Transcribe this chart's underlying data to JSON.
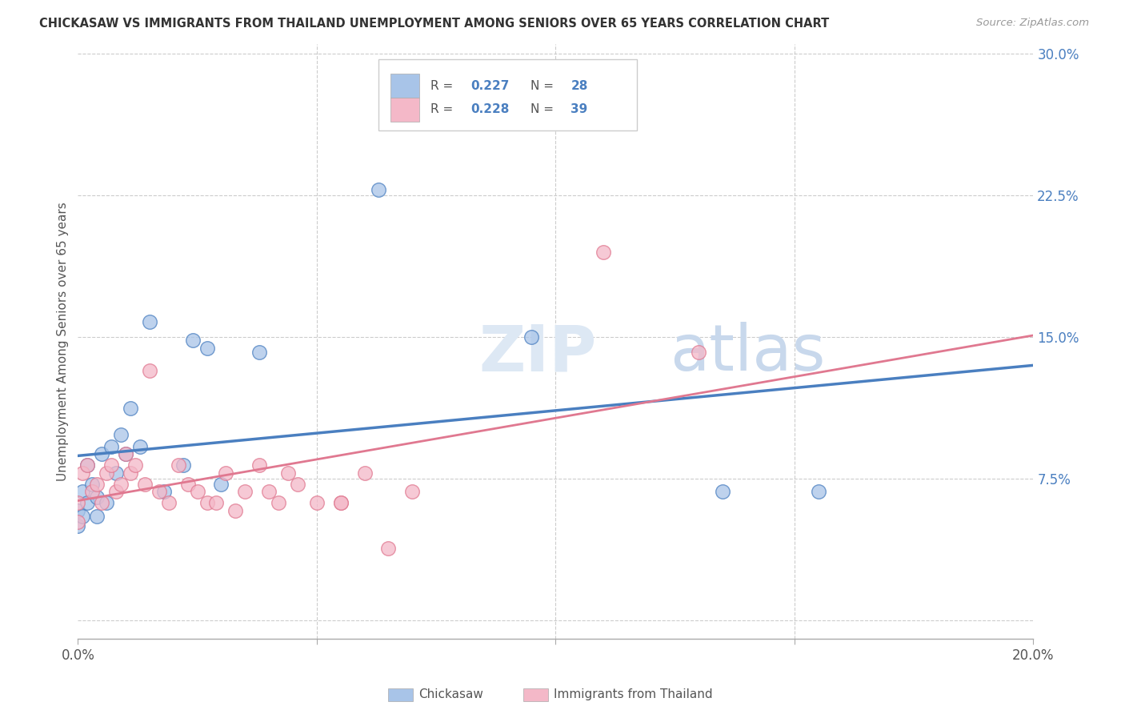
{
  "title": "CHICKASAW VS IMMIGRANTS FROM THAILAND UNEMPLOYMENT AMONG SENIORS OVER 65 YEARS CORRELATION CHART",
  "source": "Source: ZipAtlas.com",
  "ylabel": "Unemployment Among Seniors over 65 years",
  "xlim": [
    0.0,
    0.2
  ],
  "ylim": [
    -0.01,
    0.305
  ],
  "xticks": [
    0.0,
    0.05,
    0.1,
    0.15,
    0.2
  ],
  "xticklabels": [
    "0.0%",
    "",
    "",
    "",
    "20.0%"
  ],
  "yticks": [
    0.0,
    0.075,
    0.15,
    0.225,
    0.3
  ],
  "yticklabels": [
    "",
    "7.5%",
    "15.0%",
    "22.5%",
    "30.0%"
  ],
  "chickasaw_R": "0.227",
  "chickasaw_N": "28",
  "thailand_R": "0.228",
  "thailand_N": "39",
  "blue_scatter_color": "#a8c4e8",
  "pink_scatter_color": "#f4b8c8",
  "blue_line_color": "#4a7fc0",
  "pink_line_color": "#e07890",
  "legend_text_color": "#4a7fc0",
  "watermark_color1": "#dde8f4",
  "watermark_color2": "#c8d8ec",
  "chickasaw_x": [
    0.0,
    0.0,
    0.001,
    0.001,
    0.002,
    0.002,
    0.003,
    0.004,
    0.004,
    0.005,
    0.006,
    0.007,
    0.008,
    0.009,
    0.01,
    0.011,
    0.013,
    0.015,
    0.018,
    0.022,
    0.024,
    0.027,
    0.03,
    0.038,
    0.063,
    0.095,
    0.135,
    0.155
  ],
  "chickasaw_y": [
    0.058,
    0.05,
    0.068,
    0.055,
    0.082,
    0.062,
    0.072,
    0.065,
    0.055,
    0.088,
    0.062,
    0.092,
    0.078,
    0.098,
    0.088,
    0.112,
    0.092,
    0.158,
    0.068,
    0.082,
    0.148,
    0.144,
    0.072,
    0.142,
    0.228,
    0.15,
    0.068,
    0.068
  ],
  "thailand_x": [
    0.0,
    0.0,
    0.001,
    0.002,
    0.003,
    0.004,
    0.005,
    0.006,
    0.007,
    0.008,
    0.009,
    0.01,
    0.011,
    0.012,
    0.014,
    0.015,
    0.017,
    0.019,
    0.021,
    0.023,
    0.025,
    0.027,
    0.029,
    0.031,
    0.033,
    0.035,
    0.038,
    0.04,
    0.042,
    0.044,
    0.046,
    0.05,
    0.055,
    0.06,
    0.065,
    0.07,
    0.11,
    0.13,
    0.055
  ],
  "thailand_y": [
    0.062,
    0.052,
    0.078,
    0.082,
    0.068,
    0.072,
    0.062,
    0.078,
    0.082,
    0.068,
    0.072,
    0.088,
    0.078,
    0.082,
    0.072,
    0.132,
    0.068,
    0.062,
    0.082,
    0.072,
    0.068,
    0.062,
    0.062,
    0.078,
    0.058,
    0.068,
    0.082,
    0.068,
    0.062,
    0.078,
    0.072,
    0.062,
    0.062,
    0.078,
    0.038,
    0.068,
    0.195,
    0.142,
    0.062
  ]
}
